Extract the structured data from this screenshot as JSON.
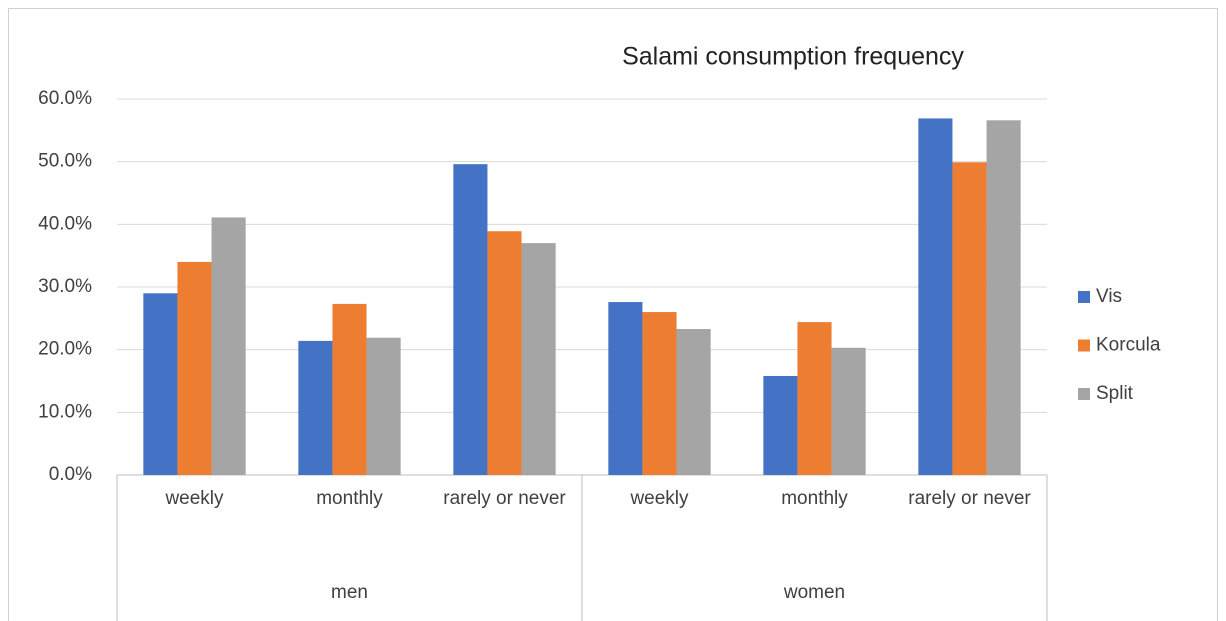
{
  "chart_data": {
    "type": "bar",
    "title": "Salami consumption frequency",
    "groups": [
      {
        "name": "men",
        "categories": [
          "weekly",
          "monthly",
          "rarely or never"
        ]
      },
      {
        "name": "women",
        "categories": [
          "weekly",
          "monthly",
          "rarely or never"
        ]
      }
    ],
    "series": [
      {
        "name": "Vis",
        "color": "#4472c4",
        "values": [
          29.0,
          21.4,
          49.6,
          27.6,
          15.8,
          56.9
        ]
      },
      {
        "name": "Korcula",
        "color": "#ed7d31",
        "values": [
          34.0,
          27.3,
          38.9,
          26.0,
          24.4,
          49.9
        ]
      },
      {
        "name": "Split",
        "color": "#a5a5a5",
        "values": [
          41.1,
          21.9,
          37.0,
          23.3,
          20.3,
          56.6
        ]
      }
    ],
    "ylim": [
      0,
      60
    ],
    "yticks": [
      {
        "value": 0,
        "label": "0.0%"
      },
      {
        "value": 10,
        "label": "10.0%"
      },
      {
        "value": 20,
        "label": "20.0%"
      },
      {
        "value": 30,
        "label": "30.0%"
      },
      {
        "value": 40,
        "label": "40.0%"
      },
      {
        "value": 50,
        "label": "50.0%"
      },
      {
        "value": 60,
        "label": "60.0%"
      }
    ],
    "grid": true,
    "legend": "right"
  }
}
